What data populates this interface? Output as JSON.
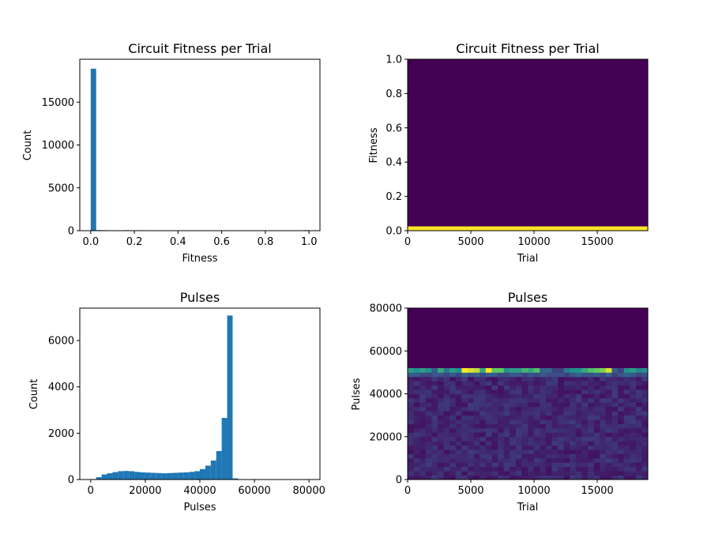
{
  "chart_data": [
    {
      "type": "bar",
      "title": "Circuit Fitness per Trial",
      "xlabel": "Fitness",
      "ylabel": "Count",
      "xlim": [
        -0.05,
        1.05
      ],
      "ylim": [
        0,
        20000
      ],
      "xticks": [
        "0.0",
        "0.2",
        "0.4",
        "0.6",
        "0.8",
        "1.0"
      ],
      "yticks": [
        "0",
        "5000",
        "10000",
        "15000"
      ],
      "bin_width": 0.025,
      "bins": [
        {
          "x": 0.0,
          "count": 18900
        },
        {
          "x": 0.025,
          "count": 70
        },
        {
          "x": 0.05,
          "count": 55
        },
        {
          "x": 0.075,
          "count": 45
        },
        {
          "x": 0.1,
          "count": 40
        },
        {
          "x": 0.125,
          "count": 20
        },
        {
          "x": 0.15,
          "count": 60
        },
        {
          "x": 0.2,
          "count": 35
        },
        {
          "x": 0.225,
          "count": 50
        },
        {
          "x": 0.975,
          "count": 60
        }
      ],
      "color": "#1f77b4"
    },
    {
      "type": "heatmap",
      "title": "Circuit Fitness per Trial",
      "xlabel": "Trial",
      "ylabel": "Fitness",
      "xlim": [
        0,
        19000
      ],
      "ylim": [
        0,
        1.0
      ],
      "xticks": [
        "0",
        "5000",
        "10000",
        "15000"
      ],
      "yticks": [
        "0.0",
        "0.2",
        "0.4",
        "0.6",
        "0.8",
        "1.0"
      ],
      "background_color": "#440154",
      "band": {
        "y_from": 0.0,
        "y_to": 0.025,
        "color": "#fde725"
      }
    },
    {
      "type": "bar",
      "title": "Pulses",
      "xlabel": "Pulses",
      "ylabel": "Count",
      "xlim": [
        -4000,
        84000
      ],
      "ylim": [
        0,
        7400
      ],
      "xticks": [
        "0",
        "20000",
        "40000",
        "60000",
        "80000"
      ],
      "yticks": [
        "0",
        "2000",
        "4000",
        "6000"
      ],
      "bin_width": 2000,
      "bins": [
        {
          "x": 0,
          "count": 20
        },
        {
          "x": 2000,
          "count": 100
        },
        {
          "x": 4000,
          "count": 220
        },
        {
          "x": 6000,
          "count": 270
        },
        {
          "x": 8000,
          "count": 320
        },
        {
          "x": 10000,
          "count": 360
        },
        {
          "x": 12000,
          "count": 370
        },
        {
          "x": 14000,
          "count": 360
        },
        {
          "x": 16000,
          "count": 330
        },
        {
          "x": 18000,
          "count": 310
        },
        {
          "x": 20000,
          "count": 300
        },
        {
          "x": 22000,
          "count": 290
        },
        {
          "x": 24000,
          "count": 280
        },
        {
          "x": 26000,
          "count": 270
        },
        {
          "x": 28000,
          "count": 280
        },
        {
          "x": 30000,
          "count": 290
        },
        {
          "x": 32000,
          "count": 300
        },
        {
          "x": 34000,
          "count": 310
        },
        {
          "x": 36000,
          "count": 330
        },
        {
          "x": 38000,
          "count": 360
        },
        {
          "x": 40000,
          "count": 450
        },
        {
          "x": 42000,
          "count": 600
        },
        {
          "x": 44000,
          "count": 820
        },
        {
          "x": 46000,
          "count": 1230
        },
        {
          "x": 48000,
          "count": 2660
        },
        {
          "x": 50000,
          "count": 7080
        },
        {
          "x": 52000,
          "count": 50
        },
        {
          "x": 54000,
          "count": 10
        }
      ],
      "color": "#1f77b4"
    },
    {
      "type": "heatmap",
      "title": "Pulses",
      "xlabel": "Trial",
      "ylabel": "Pulses",
      "xlim": [
        0,
        19000
      ],
      "ylim": [
        0,
        80000
      ],
      "xticks": [
        "0",
        "5000",
        "10000",
        "15000"
      ],
      "yticks": [
        "0",
        "20000",
        "40000",
        "60000",
        "80000"
      ],
      "background_color": "#440154",
      "x_bins": 40,
      "y_bin_width": 2000,
      "data_top": 52000,
      "top_row_values": [
        0.55,
        0.5,
        0.55,
        0.5,
        0.3,
        0.6,
        0.4,
        0.55,
        0.5,
        1.0,
        0.95,
        0.9,
        0.6,
        1.0,
        0.75,
        0.75,
        0.5,
        0.55,
        0.55,
        0.65,
        0.6,
        0.7,
        0.3,
        0.35,
        0.2,
        0.2,
        0.4,
        0.5,
        0.5,
        0.6,
        0.7,
        0.75,
        0.8,
        0.95,
        0.3,
        0.2,
        0.5,
        0.55,
        0.45,
        0.5
      ]
    }
  ]
}
